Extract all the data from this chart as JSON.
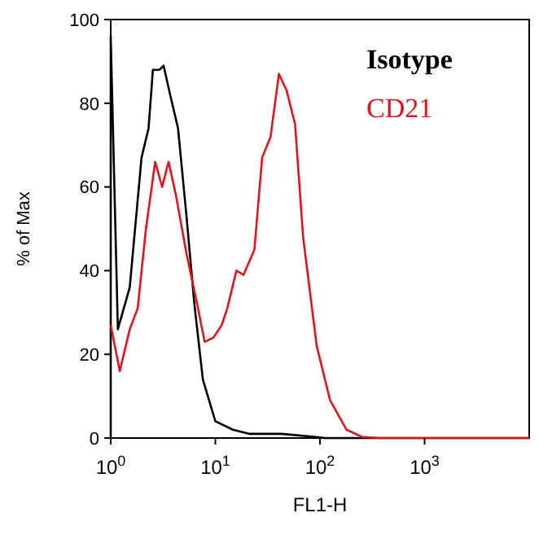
{
  "chart_data": {
    "type": "line",
    "xlabel": "FL1-H",
    "ylabel": "% of Max",
    "log": "x",
    "legend": "top right",
    "grid": false,
    "line_style": "solid",
    "xlim": [
      1,
      10000
    ],
    "xticks": [
      {
        "value": 1,
        "label": "10$^{0}$"
      },
      {
        "value": 10,
        "label": "10$^{1}$"
      },
      {
        "value": 100,
        "label": "10$^{2}$"
      },
      {
        "value": 1000,
        "label": "10$^{3}$"
      }
    ],
    "ylim": [
      0,
      100
    ],
    "yticks": [
      0,
      20,
      40,
      60,
      80,
      100
    ],
    "series": [
      {
        "name": "Isotype",
        "color": "#000000",
        "x": [
          1,
          1,
          1.17,
          1.52,
          1.97,
          2.3,
          2.53,
          2.93,
          3.2,
          3.7,
          4.4,
          5.3,
          6.3,
          7.6,
          10,
          14.7,
          21,
          43,
          88,
          112,
          10000
        ],
        "values": [
          0,
          96,
          26,
          36,
          67,
          74,
          88,
          88,
          89,
          82,
          74,
          53,
          32,
          14,
          4,
          2,
          1,
          1,
          0.3,
          0,
          0
        ]
      },
      {
        "name": "CD21",
        "color": "#e0141e",
        "x": [
          1,
          1.22,
          1.52,
          1.81,
          2.17,
          2.66,
          3.1,
          3.57,
          4.2,
          5.3,
          6.7,
          7.9,
          9.6,
          11.5,
          13,
          15.9,
          18.6,
          23.6,
          28,
          33.7,
          40.5,
          48,
          57.8,
          69,
          93,
          125,
          179,
          251,
          365,
          10000
        ],
        "values": [
          27,
          16,
          26,
          31,
          50,
          66,
          60,
          66,
          58,
          44,
          32,
          23,
          24,
          27,
          31,
          40,
          39,
          45,
          67,
          72,
          87,
          83,
          75,
          48,
          22,
          9,
          2,
          0.3,
          0,
          0
        ]
      }
    ]
  }
}
